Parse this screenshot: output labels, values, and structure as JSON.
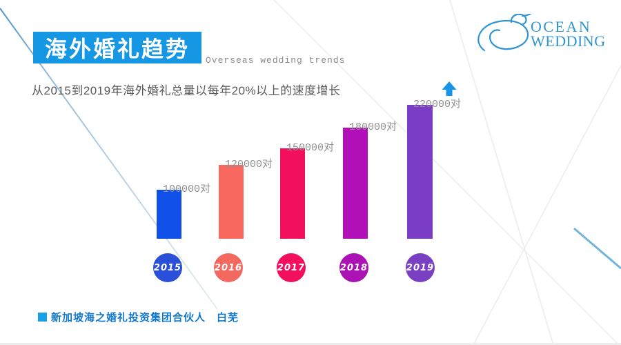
{
  "header": {
    "title_zh": "海外婚礼趋势",
    "title_en": "Overseas wedding trends",
    "description": "从2015到2019年海外婚礼总量以每年20%以上的速度增长",
    "title_bg_color": "#1697e4"
  },
  "logo": {
    "name_line1": "OCEAN",
    "name_line2": "WEDDING",
    "icon": "conch-shell-icon",
    "color": "#2f95d2"
  },
  "chart_data": {
    "type": "bar",
    "title": "海外婚礼趋势 (Overseas wedding trends)",
    "categories": [
      "2015",
      "2016",
      "2017",
      "2018",
      "2019"
    ],
    "values": [
      100000,
      120000,
      150000,
      180000,
      220000
    ],
    "value_labels": [
      "100000对",
      "120000对",
      "150000对",
      "180000对",
      "220000对"
    ],
    "unit": "对",
    "xlabel": "",
    "ylabel": "",
    "ylim": [
      0,
      230000
    ],
    "axes_visible": false,
    "grid": false,
    "legend": false,
    "bar_colors": [
      "#1150e8",
      "#f8685f",
      "#f20f5e",
      "#b110b8",
      "#7b3dc6"
    ],
    "circle_colors": [
      "#2a4fd9",
      "#f4695f",
      "#f20f5e",
      "#aa12b3",
      "#7a40c2"
    ],
    "annotation": {
      "symbol": "up-arrow",
      "color": "#1793e8",
      "position": "above 2019 bar"
    }
  },
  "footer": {
    "text": "新加坡海之婚礼投资集团合伙人　白芜",
    "color": "#1377cc"
  }
}
